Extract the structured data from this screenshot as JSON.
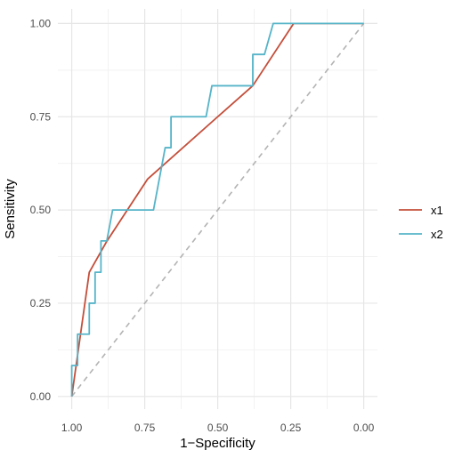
{
  "chart_data": {
    "type": "line",
    "xlabel": "1−Specificity",
    "ylabel": "Sensitivity",
    "xlim": [
      1.0,
      0.0
    ],
    "ylim": [
      0.0,
      1.0
    ],
    "x_reversed": true,
    "x_ticks": [
      1.0,
      0.75,
      0.5,
      0.25,
      0.0
    ],
    "x_tick_labels": [
      "1.00",
      "0.75",
      "0.50",
      "0.25",
      "0.00"
    ],
    "y_ticks": [
      0.0,
      0.25,
      0.5,
      0.75,
      1.0
    ],
    "y_tick_labels": [
      "0.00",
      "0.25",
      "0.50",
      "0.75",
      "1.00"
    ],
    "grid": true,
    "legend_position": "right",
    "reference_line": {
      "style": "dashed",
      "color": "#b3b3b3",
      "points": [
        [
          1.0,
          0.0
        ],
        [
          0.0,
          1.0
        ]
      ]
    },
    "series": [
      {
        "name": "x1",
        "color": "#C44E3A",
        "points": [
          [
            1.0,
            0.0
          ],
          [
            0.94,
            0.333
          ],
          [
            0.88,
            0.416
          ],
          [
            0.74,
            0.583
          ],
          [
            0.5,
            0.75
          ],
          [
            0.38,
            0.833
          ],
          [
            0.24,
            1.0
          ],
          [
            0.0,
            1.0
          ]
        ]
      },
      {
        "name": "x2",
        "color": "#56B4C8",
        "points": [
          [
            1.0,
            0.0
          ],
          [
            1.0,
            0.083
          ],
          [
            0.98,
            0.083
          ],
          [
            0.98,
            0.167
          ],
          [
            0.94,
            0.167
          ],
          [
            0.94,
            0.25
          ],
          [
            0.92,
            0.25
          ],
          [
            0.92,
            0.333
          ],
          [
            0.9,
            0.333
          ],
          [
            0.9,
            0.417
          ],
          [
            0.88,
            0.417
          ],
          [
            0.86,
            0.5
          ],
          [
            0.72,
            0.5
          ],
          [
            0.68,
            0.667
          ],
          [
            0.66,
            0.667
          ],
          [
            0.66,
            0.75
          ],
          [
            0.54,
            0.75
          ],
          [
            0.52,
            0.833
          ],
          [
            0.38,
            0.833
          ],
          [
            0.38,
            0.917
          ],
          [
            0.34,
            0.917
          ],
          [
            0.31,
            1.0
          ],
          [
            0.0,
            1.0
          ]
        ]
      }
    ]
  }
}
